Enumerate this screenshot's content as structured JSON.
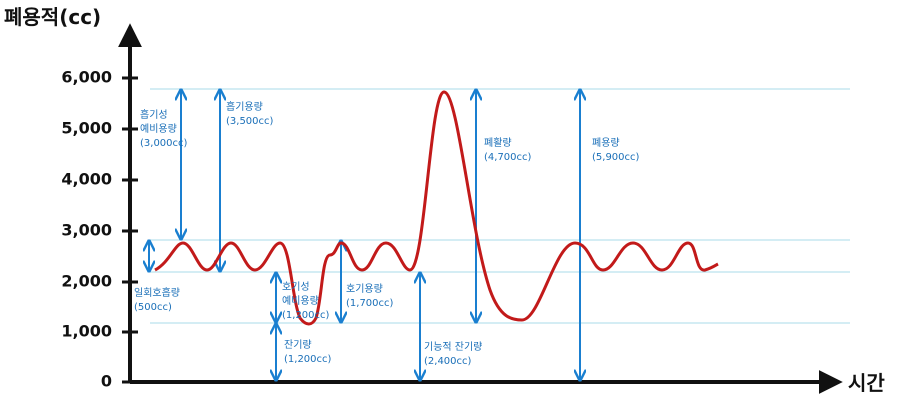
{
  "y_axis": {
    "label": "폐용적(cc)",
    "ticks": [
      "6,000",
      "5,000",
      "4,000",
      "3,000",
      "2,000",
      "1,000",
      "0"
    ]
  },
  "x_axis": {
    "label": "시간"
  },
  "annotations": [
    {
      "lines": [
        "흡기성",
        "예비용량",
        "(3,000cc)"
      ]
    },
    {
      "lines": [
        "흡기용량",
        "(3,500cc)"
      ]
    },
    {
      "lines": [
        "일회호흡량",
        "(500cc)"
      ]
    },
    {
      "lines": [
        "호기성",
        "예비용량",
        "(1,200cc)"
      ]
    },
    {
      "lines": [
        "잔기량",
        "(1,200cc)"
      ]
    },
    {
      "lines": [
        "호기용량",
        "(1,700cc)"
      ]
    },
    {
      "lines": [
        "기능적 잔기량",
        "(2,400cc)"
      ]
    },
    {
      "lines": [
        "폐활량",
        "(4,700cc)"
      ]
    },
    {
      "lines": [
        "폐용량",
        "(5,900cc)"
      ]
    }
  ]
}
